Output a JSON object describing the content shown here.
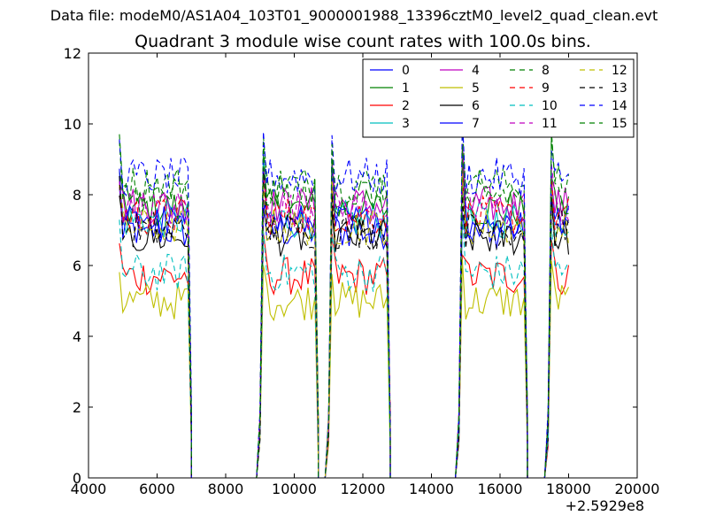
{
  "suptitle": "Data file: modeM0/AS1A04_103T01_9000001988_13396cztM0_level2_quad_clean.evt",
  "chart_data": {
    "type": "line",
    "title": "Quadrant 3 module wise count rates with 100.0s bins.",
    "xlabel": "",
    "ylabel": "",
    "x_offset_label": "+2.5929e8",
    "xlim": [
      4000,
      20000
    ],
    "ylim": [
      0,
      12
    ],
    "x_ticks": [
      4000,
      6000,
      8000,
      10000,
      12000,
      14000,
      16000,
      18000,
      20000
    ],
    "y_ticks": [
      0,
      2,
      4,
      6,
      8,
      10,
      12
    ],
    "legend_position": "top-right",
    "legend_columns": 4,
    "segments": [
      {
        "start": 4900,
        "end": 6900
      },
      {
        "start": 9100,
        "end": 10600
      },
      {
        "start": 11100,
        "end": 12700
      },
      {
        "start": 14900,
        "end": 16700
      },
      {
        "start": 17500,
        "end": 18000
      }
    ],
    "series": [
      {
        "name": "0",
        "color": "#0000ff",
        "dash": "solid",
        "level": 7.0
      },
      {
        "name": "1",
        "color": "#008000",
        "dash": "solid",
        "level": 7.6
      },
      {
        "name": "2",
        "color": "#ff0000",
        "dash": "solid",
        "level": 5.7
      },
      {
        "name": "3",
        "color": "#00bfbf",
        "dash": "solid",
        "level": 7.3
      },
      {
        "name": "4",
        "color": "#bf00bf",
        "dash": "solid",
        "level": 7.7
      },
      {
        "name": "5",
        "color": "#bfbf00",
        "dash": "solid",
        "level": 5.0
      },
      {
        "name": "6",
        "color": "#000000",
        "dash": "solid",
        "level": 6.8
      },
      {
        "name": "7",
        "color": "#0000ff",
        "dash": "solid",
        "level": 7.2
      },
      {
        "name": "8",
        "color": "#008000",
        "dash": "dashed",
        "level": 8.3
      },
      {
        "name": "9",
        "color": "#ff0000",
        "dash": "dashed",
        "level": 7.4
      },
      {
        "name": "10",
        "color": "#00bfbf",
        "dash": "dashed",
        "level": 5.8
      },
      {
        "name": "11",
        "color": "#bf00bf",
        "dash": "dashed",
        "level": 7.6
      },
      {
        "name": "12",
        "color": "#bfbf00",
        "dash": "dashed",
        "level": 7.1
      },
      {
        "name": "13",
        "color": "#000000",
        "dash": "dashed",
        "level": 7.0
      },
      {
        "name": "14",
        "color": "#0000ff",
        "dash": "dashed",
        "level": 8.5
      },
      {
        "name": "15",
        "color": "#008000",
        "dash": "dashed",
        "level": 8.0
      }
    ]
  }
}
